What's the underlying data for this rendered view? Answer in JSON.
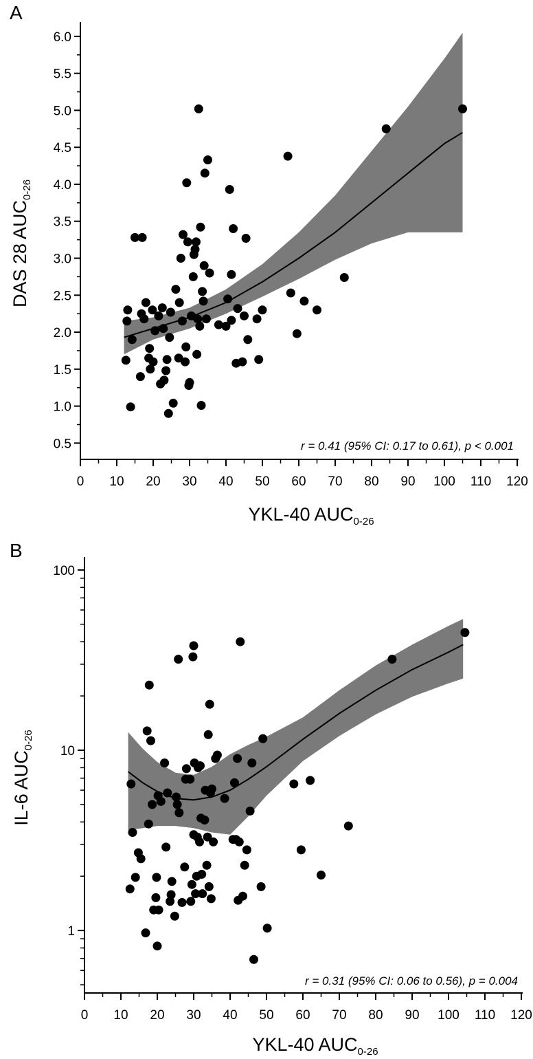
{
  "chart_data": [
    {
      "type": "scatter",
      "panel_label": "A",
      "xlabel": "YKL-40 AUC",
      "xlabel_sub": "0-26",
      "ylabel": "DAS 28 AUC",
      "ylabel_sub": "0-26",
      "xlim": [
        0,
        120
      ],
      "ylim": [
        0.5,
        6.0
      ],
      "y_scale": "linear",
      "x_ticks": [
        0,
        10,
        20,
        30,
        40,
        50,
        60,
        70,
        80,
        90,
        100,
        110,
        120
      ],
      "y_ticks": [
        "0.5",
        "1.0",
        "1.5",
        "2.0",
        "2.5",
        "3.0",
        "3.5",
        "4.0",
        "4.5",
        "5.0",
        "5.5",
        "6.0"
      ],
      "grid": false,
      "annotation": "r = 0.41 (95% CI: 0.17 to 0.61), p < 0.001",
      "fit": {
        "x": [
          12,
          20,
          30,
          40,
          50,
          60,
          70,
          80,
          90,
          100,
          105
        ],
        "y": [
          1.93,
          2.05,
          2.2,
          2.4,
          2.68,
          3.0,
          3.35,
          3.75,
          4.15,
          4.55,
          4.7
        ],
        "ci_lower": [
          1.7,
          1.9,
          2.05,
          2.25,
          2.48,
          2.72,
          2.98,
          3.2,
          3.35,
          3.35,
          3.35
        ],
        "ci_upper": [
          2.15,
          2.2,
          2.33,
          2.58,
          2.92,
          3.35,
          3.85,
          4.45,
          5.05,
          5.7,
          6.05
        ]
      },
      "points": [
        [
          12.5,
          1.62
        ],
        [
          12.8,
          2.15
        ],
        [
          13.0,
          2.3
        ],
        [
          13.8,
          0.99
        ],
        [
          14.2,
          1.9
        ],
        [
          15.0,
          3.28
        ],
        [
          16.5,
          1.4
        ],
        [
          16.8,
          2.25
        ],
        [
          17.0,
          3.28
        ],
        [
          17.5,
          2.18
        ],
        [
          18.0,
          2.4
        ],
        [
          18.8,
          1.65
        ],
        [
          19.0,
          1.78
        ],
        [
          19.2,
          1.5
        ],
        [
          19.8,
          2.3
        ],
        [
          20.0,
          1.6
        ],
        [
          20.5,
          2.02
        ],
        [
          21.5,
          2.22
        ],
        [
          22.0,
          1.3
        ],
        [
          22.5,
          2.33
        ],
        [
          22.8,
          2.05
        ],
        [
          23.0,
          1.35
        ],
        [
          23.5,
          1.48
        ],
        [
          23.8,
          1.63
        ],
        [
          24.2,
          0.9
        ],
        [
          24.5,
          1.93
        ],
        [
          24.8,
          2.27
        ],
        [
          25.5,
          1.04
        ],
        [
          26.2,
          2.58
        ],
        [
          27.0,
          1.65
        ],
        [
          27.2,
          2.4
        ],
        [
          27.6,
          3.0
        ],
        [
          28.0,
          2.15
        ],
        [
          28.2,
          3.32
        ],
        [
          28.8,
          1.6
        ],
        [
          29.0,
          1.8
        ],
        [
          29.2,
          4.02
        ],
        [
          29.5,
          3.22
        ],
        [
          29.8,
          1.28
        ],
        [
          30.0,
          1.32
        ],
        [
          30.5,
          2.22
        ],
        [
          31.0,
          2.75
        ],
        [
          31.2,
          3.05
        ],
        [
          31.5,
          3.12
        ],
        [
          31.8,
          3.22
        ],
        [
          32.0,
          1.7
        ],
        [
          32.2,
          2.18
        ],
        [
          32.5,
          5.02
        ],
        [
          32.8,
          2.08
        ],
        [
          33.0,
          3.42
        ],
        [
          33.2,
          1.01
        ],
        [
          33.5,
          2.55
        ],
        [
          33.8,
          2.42
        ],
        [
          34.0,
          2.9
        ],
        [
          34.2,
          4.15
        ],
        [
          34.6,
          2.18
        ],
        [
          35.0,
          4.33
        ],
        [
          35.5,
          2.8
        ],
        [
          38.0,
          2.1
        ],
        [
          40.0,
          2.08
        ],
        [
          40.5,
          2.45
        ],
        [
          41.0,
          3.93
        ],
        [
          41.5,
          2.16
        ],
        [
          41.5,
          2.78
        ],
        [
          42.0,
          3.4
        ],
        [
          42.8,
          1.58
        ],
        [
          43.2,
          2.32
        ],
        [
          44.5,
          1.6
        ],
        [
          45.0,
          2.22
        ],
        [
          45.5,
          3.27
        ],
        [
          46.0,
          1.9
        ],
        [
          48.5,
          2.18
        ],
        [
          49.0,
          1.63
        ],
        [
          50.0,
          2.3
        ],
        [
          57.0,
          4.38
        ],
        [
          57.8,
          2.53
        ],
        [
          59.5,
          1.98
        ],
        [
          61.5,
          2.42
        ],
        [
          65.0,
          2.3
        ],
        [
          72.5,
          2.74
        ],
        [
          84.0,
          4.75
        ],
        [
          105.0,
          5.02
        ]
      ]
    },
    {
      "type": "scatter",
      "panel_label": "B",
      "xlabel": "YKL-40 AUC",
      "xlabel_sub": "0-26",
      "ylabel": "IL-6 AUC",
      "ylabel_sub": "0-26",
      "xlim": [
        0,
        120
      ],
      "ylim": [
        0.45,
        110
      ],
      "y_scale": "log",
      "x_ticks": [
        0,
        10,
        20,
        30,
        40,
        50,
        60,
        70,
        80,
        90,
        100,
        110,
        120
      ],
      "y_ticks": [
        "1",
        "10",
        "100"
      ],
      "grid": false,
      "annotation": "r = 0.31 (95% CI: 0.06 to 0.56), p = 0.004",
      "fit": {
        "x": [
          12,
          16,
          20,
          25,
          30,
          35,
          40,
          45,
          50,
          60,
          70,
          80,
          90,
          100,
          104
        ],
        "y": [
          7.6,
          6.6,
          5.9,
          5.4,
          5.3,
          5.5,
          6.0,
          6.9,
          8.1,
          11.5,
          16.0,
          21.5,
          28.0,
          35.0,
          38.5
        ],
        "ci_lower": [
          3.6,
          3.7,
          3.8,
          3.8,
          3.7,
          3.5,
          3.4,
          4.3,
          5.6,
          8.7,
          12.0,
          15.8,
          19.8,
          23.5,
          25.0
        ],
        "ci_upper": [
          12.6,
          10.2,
          8.6,
          7.5,
          7.3,
          8.1,
          9.5,
          10.7,
          11.9,
          15.2,
          21.5,
          29.5,
          38.5,
          49.0,
          53.5
        ]
      },
      "points": [
        [
          12.5,
          1.7
        ],
        [
          12.8,
          6.5
        ],
        [
          13.2,
          3.5
        ],
        [
          14.0,
          1.97
        ],
        [
          14.8,
          2.7
        ],
        [
          15.5,
          2.5
        ],
        [
          16.8,
          0.97
        ],
        [
          17.2,
          12.8
        ],
        [
          17.6,
          3.9
        ],
        [
          17.8,
          23.0
        ],
        [
          18.2,
          11.3
        ],
        [
          18.6,
          5.0
        ],
        [
          19.0,
          1.3
        ],
        [
          19.6,
          1.52
        ],
        [
          19.8,
          1.97
        ],
        [
          20.0,
          0.82
        ],
        [
          20.2,
          5.6
        ],
        [
          20.4,
          1.3
        ],
        [
          21.0,
          5.2
        ],
        [
          22.0,
          8.5
        ],
        [
          22.4,
          2.9
        ],
        [
          22.8,
          5.8
        ],
        [
          23.5,
          1.45
        ],
        [
          23.8,
          1.58
        ],
        [
          24.0,
          1.87
        ],
        [
          24.8,
          1.2
        ],
        [
          25.2,
          5.5
        ],
        [
          25.5,
          5.0
        ],
        [
          25.8,
          32.0
        ],
        [
          26.0,
          4.5
        ],
        [
          26.8,
          1.43
        ],
        [
          27.5,
          2.25
        ],
        [
          27.8,
          6.9
        ],
        [
          28.0,
          7.9
        ],
        [
          29.0,
          6.9
        ],
        [
          29.2,
          1.45
        ],
        [
          29.5,
          1.8
        ],
        [
          29.8,
          33.0
        ],
        [
          30.0,
          38.0
        ],
        [
          30.0,
          3.4
        ],
        [
          30.2,
          8.5
        ],
        [
          30.5,
          1.6
        ],
        [
          30.8,
          2.0
        ],
        [
          31.0,
          3.3
        ],
        [
          31.2,
          8.0
        ],
        [
          31.6,
          3.1
        ],
        [
          31.8,
          8.2
        ],
        [
          32.0,
          4.2
        ],
        [
          32.2,
          2.05
        ],
        [
          32.4,
          1.6
        ],
        [
          33.0,
          4.1
        ],
        [
          33.2,
          6.0
        ],
        [
          33.6,
          2.3
        ],
        [
          33.8,
          3.3
        ],
        [
          34.0,
          12.2
        ],
        [
          34.2,
          1.75
        ],
        [
          34.4,
          18.0
        ],
        [
          34.6,
          5.8
        ],
        [
          34.8,
          1.5
        ],
        [
          35.0,
          6.1
        ],
        [
          35.4,
          3.1
        ],
        [
          36.0,
          9.0
        ],
        [
          36.5,
          9.4
        ],
        [
          38.5,
          5.4
        ],
        [
          40.8,
          3.2
        ],
        [
          41.2,
          6.6
        ],
        [
          41.6,
          3.2
        ],
        [
          42.0,
          9.0
        ],
        [
          42.2,
          1.47
        ],
        [
          42.5,
          3.1
        ],
        [
          42.8,
          40.0
        ],
        [
          43.5,
          1.55
        ],
        [
          44.0,
          2.3
        ],
        [
          44.6,
          2.8
        ],
        [
          45.5,
          4.6
        ],
        [
          46.0,
          8.5
        ],
        [
          46.5,
          0.69
        ],
        [
          48.5,
          1.75
        ],
        [
          49.0,
          11.6
        ],
        [
          50.2,
          1.03
        ],
        [
          57.5,
          6.5
        ],
        [
          59.5,
          2.8
        ],
        [
          62.0,
          6.8
        ],
        [
          65.0,
          2.03
        ],
        [
          72.5,
          3.8
        ],
        [
          84.5,
          32.0
        ],
        [
          104.5,
          45.0
        ]
      ]
    }
  ]
}
